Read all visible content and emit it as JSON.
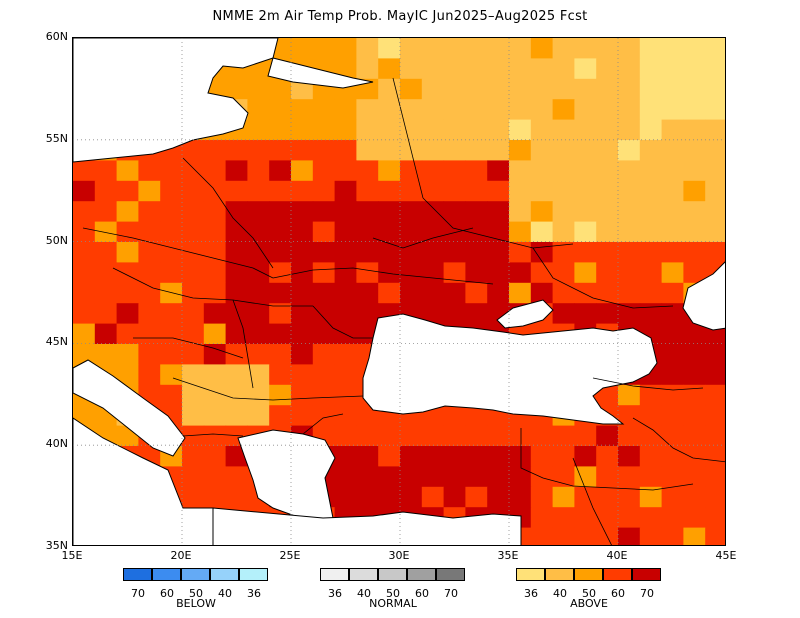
{
  "title": "NMME 2m Air Temp Prob. MayIC  Jun2025–Aug2025 Fcst",
  "map": {
    "lat_labels": [
      "60N",
      "55N",
      "50N",
      "45N",
      "40N",
      "35N"
    ],
    "lat_values": [
      60,
      55,
      50,
      45,
      40,
      35
    ],
    "lon_labels": [
      "15E",
      "20E",
      "25E",
      "30E",
      "35E",
      "40E",
      "45E"
    ],
    "lon_values": [
      15,
      20,
      25,
      30,
      35,
      40,
      45
    ],
    "lon_range": [
      15,
      45
    ],
    "lat_range": [
      35,
      60
    ],
    "grid": "dotted",
    "sea_color": "#ffffff",
    "coastline_color": "#000000"
  },
  "legend": {
    "below": {
      "label": "BELOW",
      "ticks": [
        "70",
        "60",
        "50",
        "40",
        "36"
      ],
      "colors": [
        "#1e6fe0",
        "#3c8cf0",
        "#64aaf5",
        "#96d2fa",
        "#b4f0fa"
      ]
    },
    "normal": {
      "label": "NORMAL",
      "ticks": [
        "36",
        "40",
        "50",
        "60",
        "70"
      ],
      "colors": [
        "#f0f0f0",
        "#dcdcdc",
        "#c8c8c8",
        "#a0a0a0",
        "#787878"
      ]
    },
    "above": {
      "label": "ABOVE",
      "ticks": [
        "36",
        "40",
        "50",
        "60",
        "70"
      ],
      "colors": [
        "#ffe178",
        "#ffbe46",
        "#ffa000",
        "#ff3c00",
        "#c80000"
      ]
    }
  }
}
